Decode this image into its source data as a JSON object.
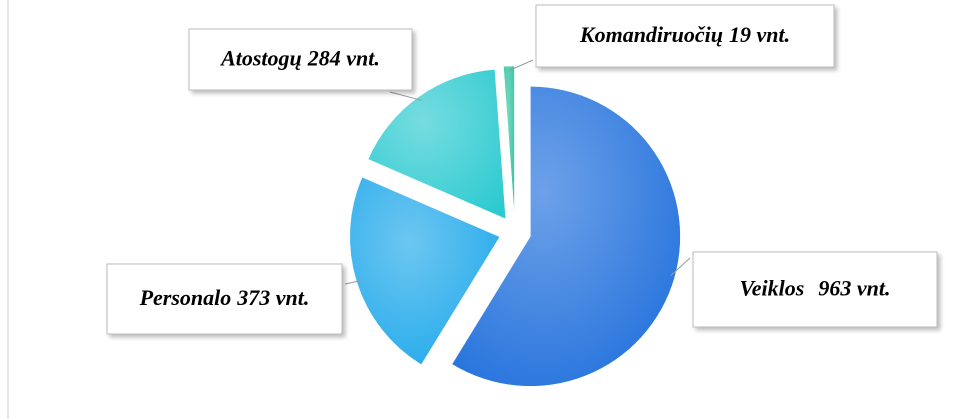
{
  "chart_data": {
    "type": "pie",
    "categories": [
      "Veiklos",
      "Personalo",
      "Atostogų",
      "Komandiruočių"
    ],
    "values": [
      963,
      373,
      284,
      19
    ],
    "value_labels": [
      "963 vnt.",
      "373 vnt.",
      "284 vnt.",
      "19 vnt."
    ],
    "colors": [
      "#1f6fdc",
      "#1ea8ea",
      "#2ccad0",
      "#2fc3a0"
    ]
  }
}
